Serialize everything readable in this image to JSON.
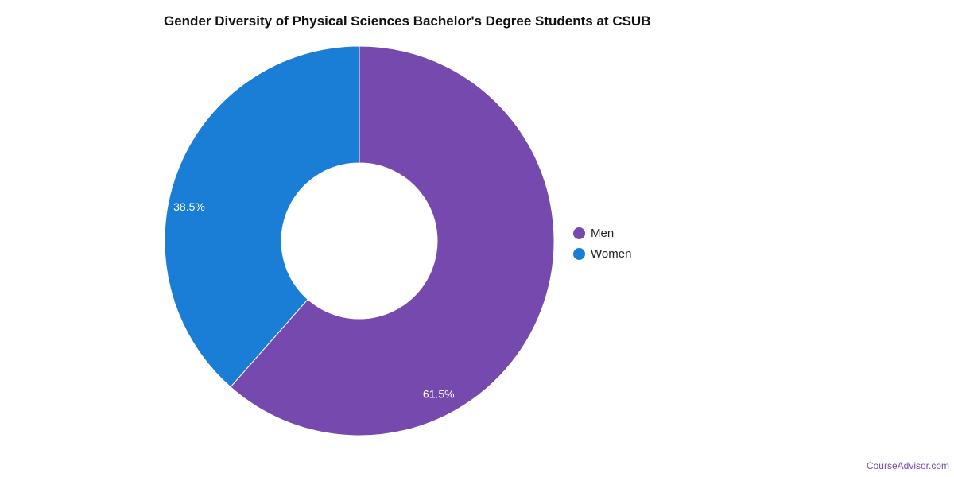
{
  "chart_data": {
    "type": "pie",
    "donut": true,
    "title": "Gender Diversity of Physical Sciences Bachelor's Degree Students at CSUB",
    "categories": [
      "Men",
      "Women"
    ],
    "values": [
      61.5,
      38.5
    ],
    "data_labels": [
      "61.5%",
      "38.5%"
    ],
    "colors": [
      "#7549ad",
      "#1a7dd6"
    ],
    "legend": {
      "position": "right",
      "items": [
        {
          "label": "Men",
          "color": "#7549ad"
        },
        {
          "label": "Women",
          "color": "#1a7dd6"
        }
      ]
    }
  },
  "footer": {
    "source": "CourseAdvisor.com",
    "source_color": "#7549ad"
  }
}
